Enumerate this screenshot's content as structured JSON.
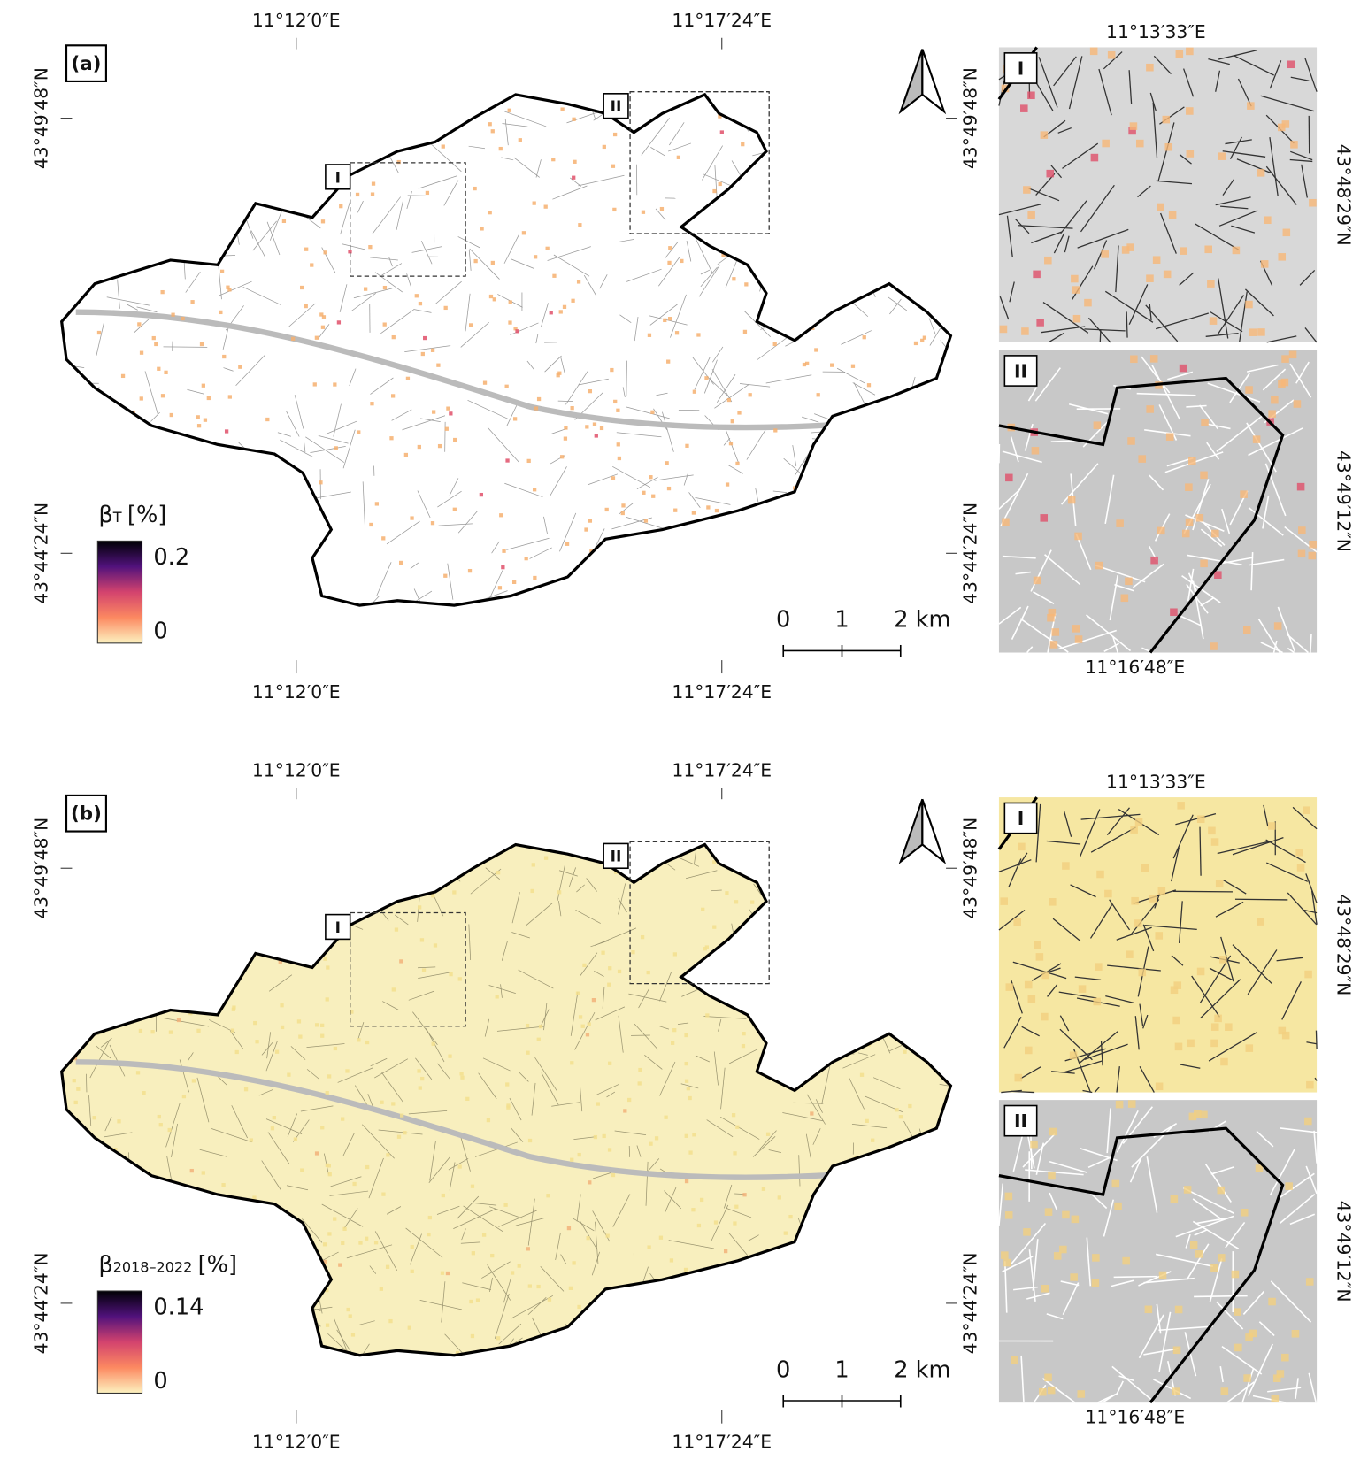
{
  "panels": [
    {
      "label": "(a)",
      "lon_top": [
        "11°12′0″E",
        "11°17′24″E"
      ],
      "lon_bottom": [
        "11°12′0″E",
        "11°17′24″E"
      ],
      "lat_left": [
        "43°49′48″N",
        "43°44′24″N"
      ],
      "lat_right": [
        "43°49′48″N",
        "43°44′24″N"
      ],
      "map_boxes": [
        "I",
        "II"
      ],
      "legend": {
        "symbol": "β",
        "subscript": "T",
        "unit": "[%]",
        "ticks": [
          0.2,
          0
        ]
      },
      "scale_bar": [
        "0",
        "1",
        "2 km"
      ],
      "insets": [
        {
          "label": "I",
          "lon": "11°13′33″E",
          "lat": "43°48′29″N"
        },
        {
          "label": "II",
          "lon": "11°16′48″E",
          "lat": "43°49′12″N"
        }
      ]
    },
    {
      "label": "(b)",
      "lon_top": [
        "11°12′0″E",
        "11°17′24″E"
      ],
      "lon_bottom": [
        "11°12′0″E",
        "11°17′24″E"
      ],
      "lat_left": [
        "43°49′48″N",
        "43°44′24″N"
      ],
      "lat_right": [
        "43°49′48″N",
        "43°44′24″N"
      ],
      "map_boxes": [
        "I",
        "II"
      ],
      "legend": {
        "symbol": "β",
        "subscript": "2018–2022",
        "unit": "[%]",
        "ticks": [
          0.14,
          0
        ]
      },
      "scale_bar": [
        "0",
        "1",
        "2 km"
      ],
      "insets": [
        {
          "label": "I",
          "lon": "11°13′33″E",
          "lat": "43°48′29″N"
        },
        {
          "label": "II",
          "lon": "11°16′48″E",
          "lat": "43°49′12″N"
        }
      ]
    }
  ]
}
